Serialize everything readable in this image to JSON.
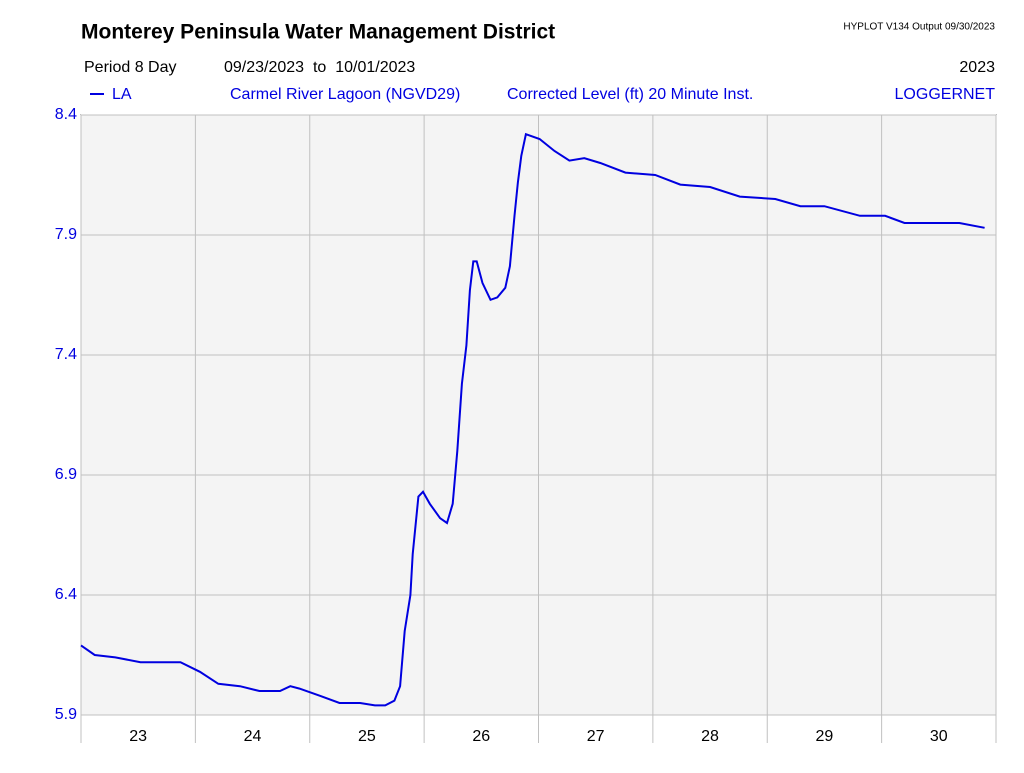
{
  "chart_data": {
    "type": "line",
    "title": "Monterey Peninsula Water Management District",
    "program": "HYPLOT V134  Output 09/30/2023",
    "period": "Period 8 Day",
    "date_range": "09/23/2023  to  10/01/2023",
    "year": "2023",
    "station": "Carmel River Lagoon (NGVD29)",
    "parameter": "Corrected Level (ft) 20 Minute Inst.",
    "source": "LOGGERNET",
    "xlim": [
      0,
      8
    ],
    "xticks": [
      {
        "value": 0.5,
        "label": "23"
      },
      {
        "value": 1.5,
        "label": "24"
      },
      {
        "value": 2.5,
        "label": "25"
      },
      {
        "value": 3.5,
        "label": "26"
      },
      {
        "value": 4.5,
        "label": "27"
      },
      {
        "value": 5.5,
        "label": "28"
      },
      {
        "value": 6.5,
        "label": "29"
      },
      {
        "value": 7.5,
        "label": "30"
      }
    ],
    "ylim": [
      5.9,
      8.4
    ],
    "yticks": [
      5.9,
      6.4,
      6.9,
      7.4,
      7.9,
      8.4
    ],
    "grid": true,
    "series": [
      {
        "name": "LA",
        "color": "#0000e0",
        "x": [
          0,
          0.12,
          0.3,
          0.52,
          0.87,
          1.04,
          1.2,
          1.39,
          1.56,
          1.74,
          1.83,
          1.91,
          2.09,
          2.26,
          2.35,
          2.44,
          2.57,
          2.66,
          2.74,
          2.79,
          2.83,
          2.88,
          2.9,
          2.95,
          2.99,
          3.05,
          3.14,
          3.2,
          3.25,
          3.29,
          3.33,
          3.37,
          3.4,
          3.43,
          3.46,
          3.51,
          3.58,
          3.64,
          3.71,
          3.75,
          3.79,
          3.82,
          3.85,
          3.89,
          4.01,
          4.14,
          4.27,
          4.4,
          4.54,
          4.76,
          5.02,
          5.24,
          5.5,
          5.76,
          6.07,
          6.29,
          6.5,
          6.81,
          7.03,
          7.2,
          7.68,
          7.9
        ],
        "values": [
          6.19,
          6.15,
          6.14,
          6.12,
          6.12,
          6.08,
          6.03,
          6.02,
          6.0,
          6.0,
          6.02,
          6.01,
          5.98,
          5.95,
          5.95,
          5.95,
          5.94,
          5.94,
          5.96,
          6.02,
          6.25,
          6.4,
          6.57,
          6.81,
          6.83,
          6.78,
          6.72,
          6.7,
          6.78,
          7.0,
          7.28,
          7.44,
          7.67,
          7.79,
          7.79,
          7.7,
          7.63,
          7.64,
          7.68,
          7.77,
          7.98,
          8.12,
          8.23,
          8.32,
          8.3,
          8.25,
          8.21,
          8.22,
          8.2,
          8.16,
          8.15,
          8.11,
          8.1,
          8.06,
          8.05,
          8.02,
          8.02,
          7.98,
          7.98,
          7.95,
          7.95,
          7.93
        ]
      }
    ]
  }
}
